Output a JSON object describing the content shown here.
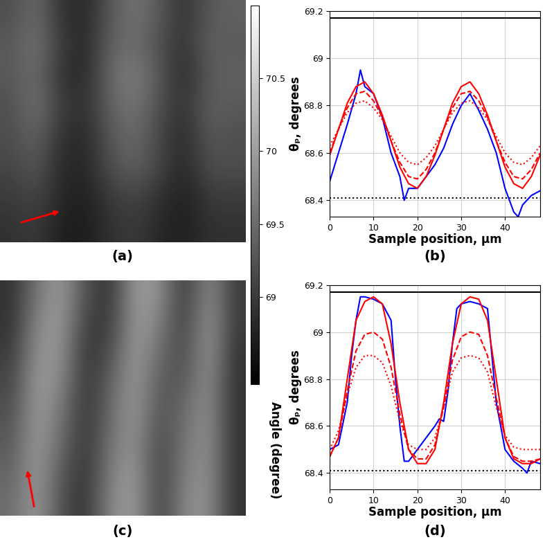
{
  "colorbar": {
    "range": [
      68.4,
      71.0
    ],
    "ticks": [
      69,
      69.5,
      70,
      70.5
    ],
    "label": "Angle (degree)"
  },
  "chart_data": [
    {
      "type": "heatmap",
      "caption": "(a)",
      "tick_labels": false,
      "values": [
        [
          69.2,
          69.5,
          68.9,
          68.8,
          69.3,
          69.6,
          69.3,
          68.9,
          69.3,
          69.4
        ],
        [
          69.3,
          69.6,
          69.0,
          68.8,
          69.4,
          69.5,
          69.2,
          68.9,
          69.4,
          69.3
        ],
        [
          69.3,
          69.5,
          68.9,
          68.8,
          69.5,
          69.7,
          69.3,
          68.8,
          69.3,
          69.4
        ],
        [
          69.2,
          69.6,
          69.0,
          68.9,
          69.4,
          69.6,
          69.2,
          68.9,
          69.4,
          69.3
        ],
        [
          69.2,
          69.4,
          68.9,
          68.8,
          69.3,
          69.5,
          69.1,
          68.8,
          69.3,
          69.2
        ],
        [
          69.1,
          69.3,
          68.8,
          68.8,
          69.2,
          69.4,
          69.1,
          68.8,
          69.2,
          69.2
        ],
        [
          69.0,
          69.1,
          68.8,
          68.7,
          69.0,
          69.1,
          68.9,
          68.7,
          69.0,
          69.0
        ],
        [
          68.9,
          69.0,
          68.7,
          68.7,
          68.9,
          69.0,
          68.8,
          68.7,
          68.9,
          68.9
        ]
      ]
    },
    {
      "type": "line",
      "caption": "(b)",
      "xlabel": "Sample position, μm",
      "ylabel": "θₚ, degrees",
      "xlim": [
        0,
        48
      ],
      "ylim": [
        68.33,
        69.2
      ],
      "xticks": [
        0,
        10,
        20,
        30,
        40
      ],
      "yticks": [
        68.4,
        68.6,
        68.8,
        69,
        69.2
      ],
      "grid": true,
      "series": [
        {
          "color": "#000000",
          "line_style": "solid",
          "x": [
            0,
            48
          ],
          "values": [
            69.17,
            69.17
          ]
        },
        {
          "color": "#000000",
          "line_style": "dotted",
          "x": [
            0,
            48
          ],
          "values": [
            68.41,
            68.41
          ]
        },
        {
          "color": "#0000ff",
          "line_style": "solid",
          "x": [
            0,
            2,
            4,
            6,
            7,
            8,
            10,
            12,
            14,
            16,
            17,
            18,
            20,
            22,
            24,
            26,
            28,
            30,
            32,
            34,
            36,
            38,
            40,
            42,
            43,
            44,
            46,
            48
          ],
          "values": [
            68.48,
            68.6,
            68.72,
            68.85,
            68.95,
            68.88,
            68.85,
            68.75,
            68.6,
            68.5,
            68.4,
            68.45,
            68.45,
            68.5,
            68.55,
            68.62,
            68.72,
            68.8,
            68.85,
            68.78,
            68.7,
            68.6,
            68.45,
            68.35,
            68.33,
            68.38,
            68.42,
            68.44
          ]
        },
        {
          "color": "#ff0000",
          "line_style": "solid",
          "x": [
            0,
            2,
            4,
            6,
            8,
            10,
            12,
            14,
            16,
            18,
            20,
            22,
            24,
            26,
            28,
            30,
            32,
            34,
            36,
            38,
            40,
            42,
            44,
            46,
            48
          ],
          "values": [
            68.59,
            68.7,
            68.81,
            68.88,
            68.9,
            68.85,
            68.76,
            68.65,
            68.54,
            68.47,
            68.45,
            68.5,
            68.59,
            68.7,
            68.81,
            68.88,
            68.9,
            68.85,
            68.76,
            68.65,
            68.54,
            68.47,
            68.45,
            68.5,
            68.59
          ]
        },
        {
          "color": "#ff0000",
          "line_style": "dashed",
          "x": [
            0,
            2,
            4,
            6,
            8,
            10,
            12,
            14,
            16,
            18,
            20,
            22,
            24,
            26,
            28,
            30,
            32,
            34,
            36,
            38,
            40,
            42,
            44,
            46,
            48
          ],
          "values": [
            68.6,
            68.7,
            68.79,
            68.85,
            68.86,
            68.82,
            68.75,
            68.65,
            68.56,
            68.5,
            68.49,
            68.53,
            68.6,
            68.7,
            68.79,
            68.85,
            68.86,
            68.82,
            68.75,
            68.65,
            68.56,
            68.5,
            68.49,
            68.53,
            68.6
          ]
        },
        {
          "color": "#ff0000",
          "line_style": "dotted",
          "x": [
            0,
            2,
            4,
            6,
            8,
            10,
            12,
            14,
            16,
            18,
            20,
            22,
            24,
            26,
            28,
            30,
            32,
            34,
            36,
            38,
            40,
            42,
            44,
            46,
            48
          ],
          "values": [
            68.63,
            68.7,
            68.77,
            68.81,
            68.82,
            68.79,
            68.74,
            68.67,
            68.6,
            68.56,
            68.55,
            68.58,
            68.63,
            68.7,
            68.77,
            68.81,
            68.82,
            68.79,
            68.74,
            68.67,
            68.6,
            68.56,
            68.55,
            68.58,
            68.63
          ]
        }
      ]
    },
    {
      "type": "heatmap",
      "caption": "(c)",
      "tick_labels": false,
      "values": [
        [
          68.9,
          69.6,
          70.0,
          69.2,
          68.9,
          70.0,
          69.9,
          68.9,
          69.9,
          69.0
        ],
        [
          68.9,
          69.8,
          70.0,
          69.0,
          69.0,
          70.0,
          69.7,
          69.0,
          70.0,
          69.0
        ],
        [
          69.0,
          69.9,
          69.9,
          68.9,
          69.2,
          70.0,
          69.5,
          69.1,
          70.0,
          68.9
        ],
        [
          69.1,
          70.0,
          69.8,
          68.9,
          69.4,
          70.0,
          69.3,
          69.3,
          69.9,
          68.9
        ],
        [
          69.2,
          70.0,
          69.6,
          68.9,
          69.5,
          70.0,
          69.2,
          69.5,
          69.9,
          68.9
        ],
        [
          69.3,
          70.0,
          69.5,
          68.9,
          69.6,
          69.9,
          69.1,
          69.6,
          69.9,
          68.9
        ],
        [
          69.4,
          70.0,
          69.3,
          68.9,
          69.7,
          70.0,
          69.0,
          69.7,
          69.9,
          68.9
        ],
        [
          69.5,
          70.0,
          69.2,
          68.9,
          69.8,
          70.0,
          69.0,
          69.8,
          69.9,
          68.9
        ]
      ]
    },
    {
      "type": "line",
      "caption": "(d)",
      "xlabel": "Sample position, μm",
      "ylabel": "θₚ, degrees",
      "xlim": [
        0,
        48
      ],
      "ylim": [
        68.33,
        69.2
      ],
      "xticks": [
        0,
        10,
        20,
        30,
        40
      ],
      "yticks": [
        68.4,
        68.6,
        68.8,
        69,
        69.2
      ],
      "grid": true,
      "series": [
        {
          "color": "#000000",
          "line_style": "solid",
          "x": [
            0,
            48
          ],
          "values": [
            69.17,
            69.17
          ]
        },
        {
          "color": "#000000",
          "line_style": "dotted",
          "x": [
            0,
            48
          ],
          "values": [
            68.41,
            68.41
          ]
        },
        {
          "color": "#0000ff",
          "line_style": "solid",
          "x": [
            0,
            2,
            4,
            5,
            6,
            7,
            8,
            10,
            12,
            14,
            15,
            16,
            17,
            18,
            20,
            22,
            24,
            25,
            26,
            27,
            28,
            29,
            30,
            32,
            34,
            36,
            37,
            38,
            40,
            42,
            44,
            45,
            46,
            48
          ],
          "values": [
            68.5,
            68.52,
            68.7,
            68.9,
            69.05,
            69.15,
            69.15,
            69.14,
            69.12,
            69.05,
            68.8,
            68.6,
            68.45,
            68.45,
            68.5,
            68.55,
            68.6,
            68.63,
            68.62,
            68.75,
            68.95,
            69.1,
            69.12,
            69.13,
            69.12,
            69.1,
            68.9,
            68.7,
            68.5,
            68.45,
            68.42,
            68.4,
            68.45,
            68.44
          ]
        },
        {
          "color": "#ff0000",
          "line_style": "solid",
          "x": [
            0,
            2,
            4,
            6,
            8,
            10,
            12,
            14,
            16,
            18,
            20,
            22,
            24,
            26,
            28,
            30,
            32,
            34,
            36,
            38,
            40,
            42,
            44,
            46,
            48
          ],
          "values": [
            68.47,
            68.55,
            68.8,
            69.05,
            69.13,
            69.15,
            69.12,
            68.95,
            68.7,
            68.5,
            68.44,
            68.44,
            68.5,
            68.7,
            68.95,
            69.12,
            69.15,
            69.14,
            69.05,
            68.8,
            68.55,
            68.46,
            68.44,
            68.44,
            68.46
          ]
        },
        {
          "color": "#ff0000",
          "line_style": "dashed",
          "x": [
            0,
            2,
            4,
            6,
            8,
            10,
            12,
            14,
            16,
            18,
            20,
            22,
            24,
            26,
            28,
            30,
            32,
            34,
            36,
            38,
            40,
            42,
            44,
            46,
            48
          ],
          "values": [
            68.47,
            68.55,
            68.75,
            68.92,
            68.99,
            69.0,
            68.97,
            68.85,
            68.65,
            68.5,
            68.46,
            68.46,
            68.52,
            68.68,
            68.88,
            68.98,
            69.0,
            68.99,
            68.9,
            68.72,
            68.55,
            68.47,
            68.45,
            68.45,
            68.46
          ]
        },
        {
          "color": "#ff0000",
          "line_style": "dotted",
          "x": [
            0,
            2,
            4,
            6,
            8,
            10,
            12,
            14,
            16,
            18,
            20,
            22,
            24,
            26,
            28,
            30,
            32,
            34,
            36,
            38,
            40,
            42,
            44,
            46,
            48
          ],
          "values": [
            68.5,
            68.58,
            68.73,
            68.85,
            68.9,
            68.9,
            68.87,
            68.77,
            68.62,
            68.52,
            68.5,
            68.5,
            68.55,
            68.68,
            68.83,
            68.89,
            68.9,
            68.89,
            68.83,
            68.68,
            68.56,
            68.51,
            68.5,
            68.5,
            68.5
          ]
        }
      ]
    }
  ]
}
